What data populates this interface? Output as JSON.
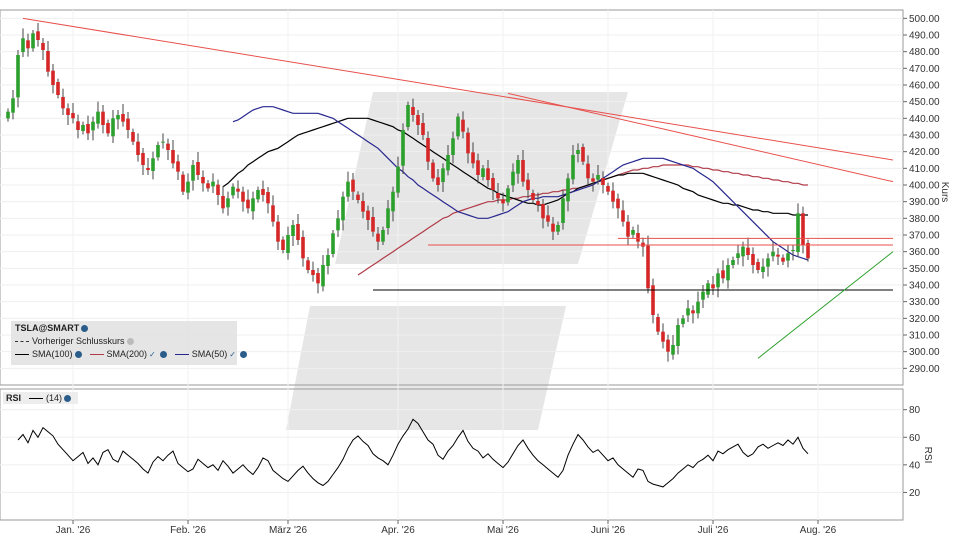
{
  "chart_data": [
    {
      "type": "candlestick",
      "instrument": "TSLA@SMART",
      "ylabel": "Kurs",
      "ylim": [
        280,
        505
      ],
      "yticks": [
        290,
        300,
        310,
        320,
        330,
        340,
        350,
        360,
        370,
        380,
        390,
        400,
        410,
        420,
        430,
        440,
        450,
        460,
        470,
        480,
        490,
        500
      ],
      "ytick_labels": [
        "290.00",
        "300.00",
        "310.00",
        "320.00",
        "330.00",
        "340.00",
        "350.00",
        "360.00",
        "370.00",
        "380.00",
        "390.00",
        "400.00",
        "410.00",
        "420.00",
        "430.00",
        "440.00",
        "450.00",
        "460.00",
        "470.00",
        "480.00",
        "490.00",
        "500.00"
      ],
      "x_labels": [
        "Jan. '26",
        "Feb. '26",
        "März '26",
        "Apr. '26",
        "Mai '26",
        "Juni '26",
        "Juli '26",
        "Aug. '26"
      ],
      "x_label_index": [
        13,
        36,
        56,
        78,
        99,
        120,
        141,
        162
      ],
      "legend": [
        "Vorheriger Schlusskurs",
        "SMA(100)",
        "SMA(200)",
        "SMA(50)"
      ],
      "close": [
        444,
        452,
        478,
        488,
        482,
        491,
        487,
        481,
        468,
        460,
        454,
        446,
        442,
        440,
        433,
        436,
        431,
        438,
        444,
        436,
        431,
        440,
        442,
        438,
        433,
        426,
        418,
        412,
        409,
        416,
        424,
        426,
        421,
        413,
        408,
        396,
        402,
        412,
        406,
        401,
        398,
        402,
        394,
        386,
        392,
        399,
        396,
        390,
        386,
        392,
        397,
        394,
        389,
        378,
        366,
        361,
        370,
        376,
        367,
        356,
        349,
        346,
        341,
        352,
        358,
        371,
        380,
        393,
        402,
        396,
        391,
        384,
        379,
        372,
        366,
        373,
        386,
        396,
        411,
        433,
        448,
        442,
        436,
        430,
        414,
        404,
        400,
        410,
        418,
        428,
        441,
        432,
        419,
        413,
        406,
        410,
        403,
        397,
        392,
        389,
        398,
        408,
        415,
        402,
        397,
        391,
        388,
        380,
        378,
        372,
        376,
        392,
        404,
        418,
        421,
        414,
        404,
        402,
        406,
        400,
        396,
        390,
        386,
        378,
        369,
        373,
        366,
        363,
        338,
        322,
        312,
        306,
        300,
        304,
        316,
        320,
        326,
        323,
        330,
        336,
        341,
        338,
        347,
        344,
        352,
        355,
        359,
        363,
        358,
        352,
        349,
        351,
        356,
        360,
        357,
        354,
        359,
        361,
        383,
        364,
        356
      ],
      "sma100": [
        399,
        401,
        404,
        407,
        409,
        412,
        414,
        416,
        418,
        420,
        421,
        422,
        424,
        426,
        428,
        430,
        431,
        432,
        433,
        434,
        435,
        436,
        437,
        438,
        439,
        440,
        440,
        440,
        440,
        440,
        439,
        438,
        437,
        436,
        435,
        433,
        432,
        430,
        428,
        426,
        424,
        422,
        420,
        418,
        416,
        414,
        412,
        410,
        408,
        406,
        404,
        402,
        400,
        398,
        397,
        395,
        394,
        393,
        392,
        391,
        390,
        389,
        389,
        388,
        388,
        389,
        390,
        391,
        393,
        395,
        396,
        398,
        399,
        400,
        401,
        402,
        403,
        404,
        405,
        406,
        406,
        407,
        407,
        407,
        407,
        406,
        405,
        404,
        403,
        402,
        401,
        400,
        398,
        397,
        396,
        394,
        393,
        392,
        391,
        390,
        389,
        389,
        388,
        388,
        387,
        386,
        385,
        385,
        384,
        384,
        383,
        383,
        383,
        383,
        382,
        382,
        382,
        382
      ],
      "sma200": [
        346,
        348,
        350,
        352,
        354,
        356,
        358,
        360,
        362,
        364,
        366,
        368,
        370,
        372,
        374,
        376,
        378,
        380,
        381,
        383,
        384,
        385,
        386,
        387,
        388,
        389,
        390,
        390,
        391,
        391,
        391,
        392,
        392,
        393,
        393,
        394,
        394,
        395,
        395,
        396,
        396,
        397,
        397,
        398,
        398,
        399,
        400,
        401,
        402,
        403,
        404,
        405,
        406,
        407,
        408,
        409,
        409,
        410,
        410,
        411,
        411,
        412,
        412,
        412,
        412,
        412,
        412,
        411,
        411,
        410,
        410,
        409,
        409,
        408,
        408,
        407,
        407,
        406,
        406,
        405,
        405,
        404,
        404,
        403,
        403,
        402,
        402,
        401,
        401,
        400,
        400
      ],
      "sma50": [
        438,
        439,
        441,
        443,
        445,
        446,
        447,
        447,
        447,
        446,
        445,
        444,
        443,
        443,
        443,
        443,
        443,
        443,
        442,
        441,
        440,
        438,
        436,
        434,
        432,
        430,
        428,
        426,
        424,
        422,
        419,
        416,
        413,
        410,
        408,
        405,
        403,
        400,
        398,
        396,
        394,
        392,
        390,
        388,
        386,
        384,
        383,
        382,
        381,
        380,
        380,
        380,
        381,
        382,
        383,
        384,
        386,
        388,
        390,
        391,
        392,
        392,
        393,
        393,
        393,
        393,
        394,
        395,
        396,
        397,
        398,
        399,
        400,
        402,
        404,
        406,
        408,
        410,
        412,
        413,
        414,
        415,
        416,
        416,
        416,
        416,
        416,
        415,
        414,
        413,
        412,
        411,
        410,
        408,
        406,
        404,
        402,
        399,
        396,
        393,
        390,
        387,
        384,
        381,
        378,
        375,
        372,
        369,
        366,
        364,
        362,
        360,
        358,
        357,
        356,
        355
      ],
      "lines": [
        {
          "type": "trend",
          "color": "#e8504c",
          "points": [
            [
              3,
              500
            ],
            [
              177,
              415
            ]
          ]
        },
        {
          "type": "trend",
          "color": "#e8504c",
          "points": [
            [
              100,
              455
            ],
            [
              177,
              402
            ]
          ]
        },
        {
          "type": "horizontal",
          "color": "#e8504c",
          "y": 364,
          "from": 84,
          "to": 177
        },
        {
          "type": "horizontal",
          "color": "#e8504c",
          "y": 368,
          "from": 122,
          "to": 177
        },
        {
          "type": "horizontal",
          "color": "#000000",
          "y": 337,
          "from": 73,
          "to": 177
        },
        {
          "type": "trend",
          "color": "#2ca02c",
          "points": [
            [
              150,
              296
            ],
            [
              177,
              360
            ]
          ]
        }
      ]
    },
    {
      "type": "line",
      "name": "RSI",
      "legend": [
        "RSI",
        "(14)"
      ],
      "ylabel": "RSI",
      "ylim": [
        0,
        95
      ],
      "yticks": [
        20,
        40,
        60,
        80
      ],
      "values": [
        58,
        62,
        56,
        65,
        60,
        67,
        64,
        61,
        55,
        51,
        47,
        43,
        46,
        49,
        41,
        45,
        40,
        49,
        51,
        44,
        42,
        50,
        47,
        44,
        41,
        37,
        34,
        42,
        46,
        43,
        47,
        50,
        41,
        38,
        35,
        37,
        44,
        41,
        38,
        40,
        36,
        43,
        39,
        34,
        37,
        40,
        36,
        33,
        38,
        45,
        43,
        36,
        33,
        30,
        28,
        32,
        36,
        39,
        34,
        30,
        27,
        25,
        28,
        33,
        38,
        44,
        52,
        58,
        61,
        57,
        54,
        48,
        45,
        43,
        40,
        47,
        55,
        61,
        66,
        73,
        70,
        64,
        58,
        55,
        47,
        44,
        50,
        54,
        60,
        65,
        57,
        52,
        50,
        45,
        48,
        44,
        41,
        38,
        42,
        48,
        54,
        58,
        52,
        47,
        43,
        40,
        37,
        34,
        31,
        36,
        47,
        55,
        62,
        58,
        53,
        49,
        51,
        47,
        43,
        45,
        40,
        37,
        34,
        31,
        37,
        36,
        28,
        26,
        25,
        24,
        27,
        30,
        34,
        37,
        40,
        38,
        42,
        44,
        47,
        43,
        50,
        48,
        51,
        53,
        55,
        49,
        46,
        48,
        53,
        55,
        52,
        54,
        56,
        54,
        58,
        55,
        60,
        52,
        48
      ]
    }
  ]
}
